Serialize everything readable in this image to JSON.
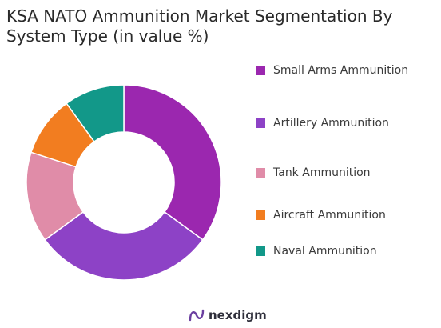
{
  "chart_data": {
    "type": "pie",
    "title": "KSA NATO Ammunition Market Segmentation By System Type (in value %)",
    "categories": [
      "Small Arms Ammunition",
      "Artillery Ammunition",
      "Tank Ammunition",
      "Aircraft Ammunition",
      "Naval Ammunition"
    ],
    "values": [
      35,
      30,
      15,
      10,
      10
    ],
    "colors": [
      "#9b27af",
      "#8d42c6",
      "#e08ca8",
      "#f27d20",
      "#129889"
    ],
    "donut": true,
    "legend": "right"
  },
  "brand": {
    "name": "nexdigm",
    "icon": "nexdigm-logo-icon"
  }
}
